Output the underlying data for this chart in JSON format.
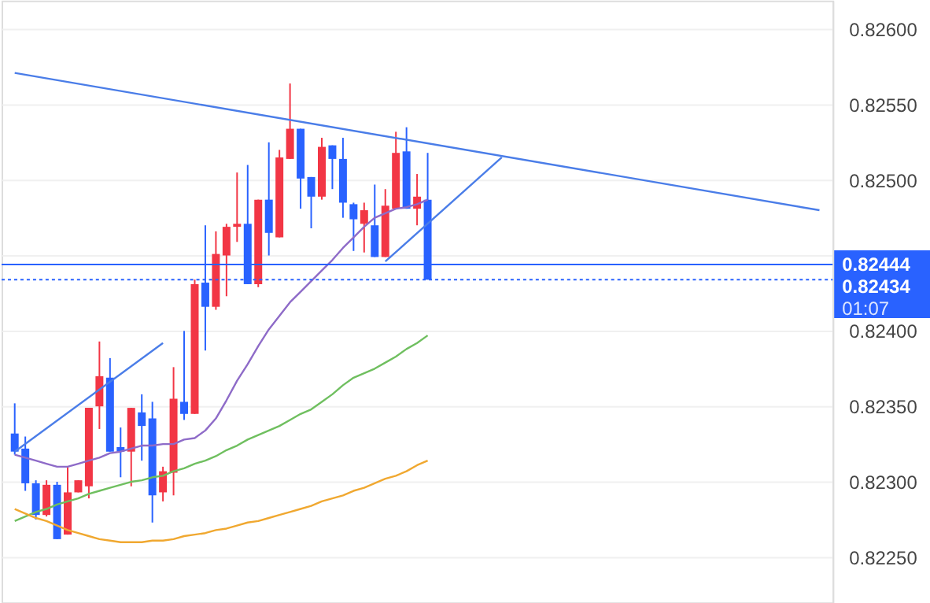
{
  "chart_data": {
    "type": "candlestick",
    "categories": [
      null,
      null,
      null,
      null,
      null,
      null,
      null,
      null,
      null,
      null,
      null,
      null,
      null,
      null,
      null,
      null,
      null,
      null,
      null,
      null,
      null,
      null,
      null,
      null,
      null,
      null,
      null,
      null,
      null,
      null,
      null,
      null,
      null,
      null,
      null,
      null,
      null,
      null,
      null,
      null,
      null,
      null,
      null,
      null,
      null,
      null,
      null,
      null,
      null,
      null,
      null,
      null,
      null,
      null,
      null,
      null,
      null,
      null,
      null,
      null,
      null,
      null,
      null,
      null,
      null,
      null,
      null,
      null,
      null,
      null,
      null,
      null,
      null,
      null,
      null,
      null,
      null
    ],
    "ohlc": [
      [
        0.82332,
        0.82352,
        0.82318,
        0.8232
      ],
      [
        0.82322,
        0.8233,
        0.82294,
        0.82299
      ],
      [
        0.82299,
        0.82301,
        0.82275,
        0.82278
      ],
      [
        0.82278,
        0.82301,
        0.82277,
        0.82298
      ],
      [
        0.82298,
        0.823,
        0.82262,
        0.82262
      ],
      [
        0.82265,
        0.8231,
        0.82265,
        0.82293
      ],
      [
        0.82293,
        0.82301,
        0.82293,
        0.82301
      ],
      [
        0.82297,
        0.82349,
        0.82289,
        0.82349
      ],
      [
        0.8235,
        0.82393,
        0.82335,
        0.8237
      ],
      [
        0.82369,
        0.82382,
        0.8232,
        0.8232
      ],
      [
        0.82323,
        0.82336,
        0.82303,
        0.8232
      ],
      [
        0.8232,
        0.82349,
        0.82297,
        0.82349
      ],
      [
        0.82346,
        0.82358,
        0.82314,
        0.82337
      ],
      [
        0.82342,
        0.82353,
        0.82273,
        0.82291
      ],
      [
        0.82293,
        0.8231,
        0.82287,
        0.82307
      ],
      [
        0.82306,
        0.82376,
        0.82291,
        0.82355
      ],
      [
        0.82353,
        0.824,
        0.82341,
        0.82345
      ],
      [
        0.82345,
        0.82434,
        0.82345,
        0.82431
      ],
      [
        0.82432,
        0.8247,
        0.82387,
        0.82416
      ],
      [
        0.82416,
        0.82466,
        0.82414,
        0.82451
      ],
      [
        0.8245,
        0.82471,
        0.82423,
        0.82469
      ],
      [
        0.82469,
        0.82505,
        0.82459,
        0.82471
      ],
      [
        0.82471,
        0.8251,
        0.82431,
        0.82431
      ],
      [
        0.82431,
        0.82487,
        0.82429,
        0.82487
      ],
      [
        0.82487,
        0.82525,
        0.8245,
        0.82465
      ],
      [
        0.82462,
        0.8252,
        0.82462,
        0.82515
      ],
      [
        0.82514,
        0.82564,
        0.82514,
        0.82534
      ],
      [
        0.82534,
        0.82534,
        0.82481,
        0.82501
      ],
      [
        0.82502,
        0.82502,
        0.82468,
        0.82489
      ],
      [
        0.82489,
        0.82528,
        0.82487,
        0.82522
      ],
      [
        0.82523,
        0.82523,
        0.82494,
        0.82514
      ],
      [
        0.82514,
        0.82528,
        0.82475,
        0.82485
      ],
      [
        0.82484,
        0.82485,
        0.82453,
        0.82474
      ],
      [
        0.82471,
        0.82485,
        0.82452,
        0.8248
      ],
      [
        0.8247,
        0.82497,
        0.82449,
        0.82449
      ],
      [
        0.82449,
        0.82494,
        0.82449,
        0.82483
      ],
      [
        0.82481,
        0.82532,
        0.82481,
        0.82518
      ],
      [
        0.82519,
        0.82535,
        0.82481,
        0.82481
      ],
      [
        0.82481,
        0.82504,
        0.8247,
        0.82489
      ],
      [
        0.82487,
        0.82518,
        0.82434,
        0.82434
      ],
      null,
      null,
      null,
      null,
      null,
      null,
      null,
      null,
      null,
      null,
      null,
      null,
      null,
      null,
      null,
      null,
      null,
      null,
      null,
      null,
      null,
      null,
      null,
      null,
      null,
      null,
      null,
      null,
      null,
      null,
      null,
      null,
      null,
      null,
      null,
      null,
      null
    ],
    "colors": [
      "#2962ff",
      "#2962ff",
      "#2962ff",
      "#f23645",
      "#2962ff",
      "#f23645",
      "#f23645",
      "#f23645",
      "#f23645",
      "#2962ff",
      "#2962ff",
      "#f23645",
      "#2962ff",
      "#2962ff",
      "#f23645",
      "#f23645",
      "#2962ff",
      "#f23645",
      "#2962ff",
      "#f23645",
      "#f23645",
      "#f23645",
      "#2962ff",
      "#f23645",
      "#2962ff",
      "#f23645",
      "#f23645",
      "#2962ff",
      "#2962ff",
      "#f23645",
      "#2962ff",
      "#2962ff",
      "#2962ff",
      "#f23645",
      "#2962ff",
      "#f23645",
      "#f23645",
      "#2962ff",
      "#f23645",
      "#2962ff",
      null,
      null,
      null,
      null,
      null,
      null,
      null,
      null,
      null,
      null,
      null,
      null,
      null,
      null,
      null,
      null,
      null,
      null,
      null,
      null,
      null,
      null,
      null,
      null,
      null,
      null,
      null,
      null,
      null,
      null,
      null,
      null,
      null,
      null,
      null,
      null,
      null
    ],
    "series": [
      {
        "type": "line",
        "color": "#4a7de8",
        "values": [
          0.82571,
          null,
          null,
          null,
          null,
          null,
          null,
          null,
          null,
          null,
          null,
          null,
          null,
          null,
          null,
          null,
          null,
          null,
          null,
          null,
          null,
          null,
          null,
          null,
          null,
          null,
          null,
          null,
          null,
          null,
          null,
          null,
          null,
          null,
          null,
          null,
          null,
          null,
          null,
          null,
          null,
          null,
          null,
          null,
          null,
          null,
          null,
          null,
          null,
          null,
          null,
          null,
          null,
          null,
          null,
          null,
          null,
          null,
          null,
          null,
          null,
          null,
          null,
          null,
          null,
          null,
          null,
          null,
          null,
          null,
          null,
          null,
          null,
          null,
          null,
          null,
          0.8248
        ]
      },
      {
        "type": "line",
        "color": "#4a7de8",
        "values": [
          0.8232,
          null,
          null,
          null,
          null,
          null,
          null,
          null,
          null,
          null,
          null,
          null,
          null,
          null,
          0.82392,
          null,
          null,
          null,
          null,
          null,
          null,
          null,
          null,
          null,
          null,
          null,
          null,
          null,
          null,
          null,
          null,
          null,
          null,
          null,
          null,
          null,
          null,
          null,
          null,
          null,
          null,
          null,
          null,
          null,
          null,
          null,
          null,
          null,
          null,
          null,
          null,
          null,
          null,
          null,
          null,
          null,
          null,
          null,
          null,
          null,
          null,
          null,
          null,
          null,
          null,
          null,
          null,
          null,
          null,
          null,
          null,
          null,
          null,
          null,
          null,
          null,
          null
        ]
      },
      {
        "type": "line",
        "color": "#4a7de8",
        "values": [
          null,
          null,
          null,
          null,
          null,
          null,
          null,
          null,
          null,
          null,
          null,
          null,
          null,
          null,
          null,
          null,
          null,
          null,
          null,
          null,
          null,
          null,
          null,
          null,
          null,
          null,
          null,
          null,
          null,
          null,
          null,
          null,
          null,
          null,
          null,
          0.82446,
          null,
          null,
          null,
          null,
          null,
          null,
          null,
          null,
          null,
          null,
          0.82515,
          null,
          null,
          null,
          null,
          null,
          null,
          null,
          null,
          null,
          null,
          null,
          null,
          null,
          null,
          null,
          null,
          null,
          null,
          null,
          null,
          null,
          null,
          null,
          null,
          null,
          null,
          null,
          null,
          null,
          null
        ]
      },
      {
        "type": "line",
        "color": "#8e6bc8",
        "values": [
          0.82318,
          0.82316,
          0.82314,
          0.82312,
          0.8231,
          0.8231,
          0.82312,
          0.82314,
          0.82316,
          0.82319,
          0.8232,
          0.82322,
          0.82324,
          0.82324,
          0.82325,
          0.82325,
          0.82328,
          0.82329,
          0.82334,
          0.82342,
          0.82354,
          0.82367,
          0.82378,
          0.8239,
          0.82401,
          0.8241,
          0.82419,
          0.82426,
          0.82433,
          0.8244,
          0.82447,
          0.82455,
          0.82462,
          0.82469,
          0.82475,
          0.82478,
          0.82481,
          0.82482,
          0.82484,
          0.82487,
          null,
          null,
          null,
          null,
          null,
          null,
          null,
          null,
          null,
          null,
          null,
          null,
          null,
          null,
          null,
          null,
          null,
          null,
          null,
          null,
          null,
          null,
          null,
          null,
          null,
          null,
          null,
          null,
          null,
          null,
          null,
          null,
          null,
          null,
          null,
          null,
          null
        ]
      },
      {
        "type": "line",
        "color": "#6fbf5f",
        "values": [
          0.82274,
          0.82277,
          0.8228,
          0.82282,
          0.82285,
          0.82287,
          0.82289,
          0.82292,
          0.82294,
          0.82296,
          0.82298,
          0.823,
          0.82301,
          0.82303,
          0.82304,
          0.82307,
          0.82309,
          0.82312,
          0.82314,
          0.82317,
          0.82321,
          0.82324,
          0.82328,
          0.82331,
          0.82334,
          0.82337,
          0.82341,
          0.82345,
          0.82348,
          0.82353,
          0.82358,
          0.82364,
          0.82369,
          0.82372,
          0.82375,
          0.82379,
          0.82383,
          0.82388,
          0.82392,
          0.82397,
          null,
          null,
          null,
          null,
          null,
          null,
          null,
          null,
          null,
          null,
          null,
          null,
          null,
          null,
          null,
          null,
          null,
          null,
          null,
          null,
          null,
          null,
          null,
          null,
          null,
          null,
          null,
          null,
          null,
          null,
          null,
          null,
          null,
          null,
          null,
          null,
          null
        ]
      },
      {
        "type": "line",
        "color": "#f0a830",
        "values": [
          0.82282,
          0.82279,
          0.82276,
          0.82274,
          0.82271,
          0.82268,
          0.82266,
          0.82264,
          0.82262,
          0.82261,
          0.8226,
          0.8226,
          0.8226,
          0.82261,
          0.82261,
          0.82262,
          0.82264,
          0.82265,
          0.82266,
          0.82268,
          0.82269,
          0.82271,
          0.82273,
          0.82274,
          0.82276,
          0.82278,
          0.8228,
          0.82282,
          0.82284,
          0.82287,
          0.82289,
          0.82291,
          0.82294,
          0.82296,
          0.82299,
          0.82302,
          0.82304,
          0.82307,
          0.82311,
          0.82314,
          null,
          null,
          null,
          null,
          null,
          null,
          null,
          null,
          null,
          null,
          null,
          null,
          null,
          null,
          null,
          null,
          null,
          null,
          null,
          null,
          null,
          null,
          null,
          null,
          null,
          null,
          null,
          null,
          null,
          null,
          null,
          null,
          null,
          null,
          null,
          null,
          null
        ]
      }
    ],
    "ylim": [
      0.8222,
      0.82619
    ],
    "yticks": [
      {
        "value": 0.8225,
        "label": "0.82250"
      },
      {
        "value": 0.823,
        "label": "0.82300"
      },
      {
        "value": 0.8235,
        "label": "0.82350"
      },
      {
        "value": 0.824,
        "label": "0.82400"
      },
      {
        "value": 0.8245,
        "label": null
      },
      {
        "value": 0.825,
        "label": "0.82500"
      },
      {
        "value": 0.8255,
        "label": "0.82550"
      },
      {
        "value": 0.826,
        "label": "0.82600"
      }
    ],
    "ref_lines": [
      {
        "axis": "y",
        "value": 0.82444,
        "label": "0.82444",
        "color": "#2962ff",
        "line_style": "solid"
      },
      {
        "axis": "y",
        "value": 0.82434,
        "label": "0.82434",
        "color": "#2962ff",
        "line_style": "dotted"
      }
    ],
    "annotations": [
      "01:07"
    ],
    "tick_labels": "y",
    "grid": "y"
  }
}
